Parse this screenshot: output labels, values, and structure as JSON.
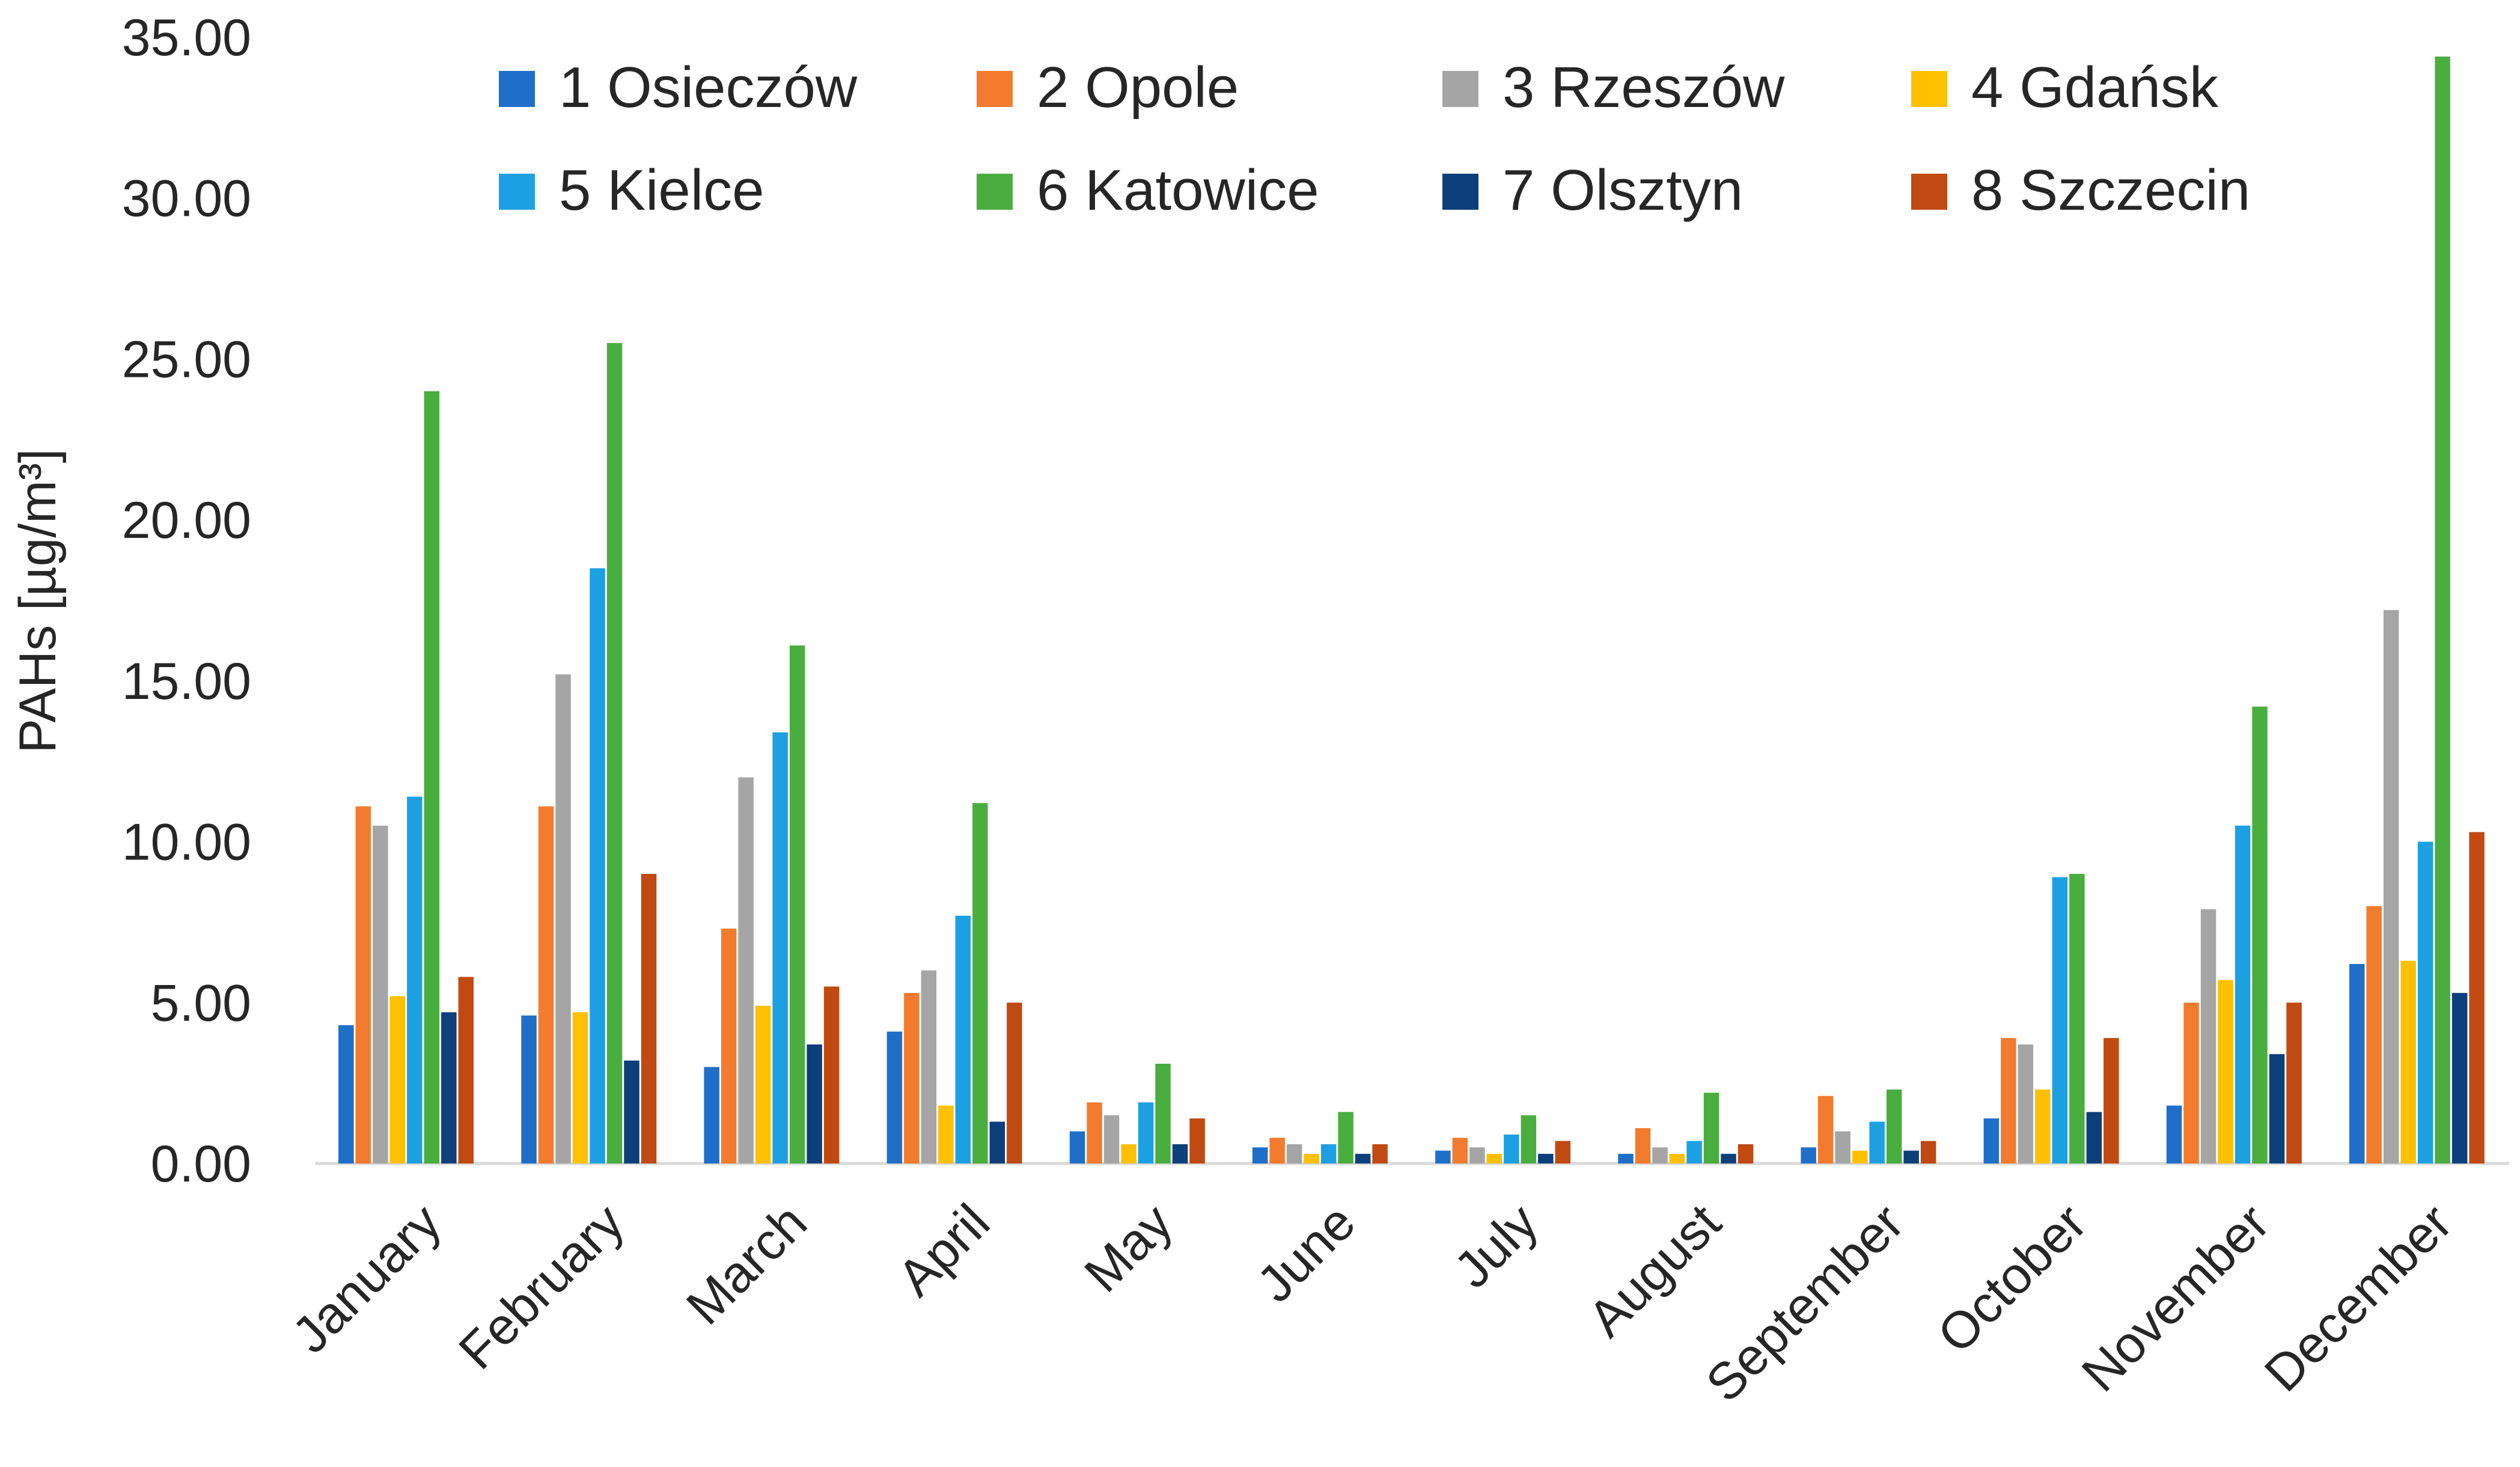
{
  "chart_data": {
    "type": "bar",
    "title": "",
    "xlabel": "",
    "ylabel": "PAHs [µg/m³]",
    "ylim": [
      0,
      35
    ],
    "yticks": [
      "0.00",
      "5.00",
      "10.00",
      "15.00",
      "20.00",
      "25.00",
      "30.00",
      "35.00"
    ],
    "grid": false,
    "legend_position": "top",
    "categories": [
      "January",
      "February",
      "March",
      "April",
      "May",
      "June",
      "July",
      "August",
      "September",
      "October",
      "November",
      "December"
    ],
    "series": [
      {
        "name": "1 Osieczów",
        "color": "#1f6fc9",
        "values": [
          4.3,
          4.6,
          3.0,
          4.1,
          1.0,
          0.5,
          0.4,
          0.3,
          0.5,
          1.4,
          1.8,
          6.2
        ]
      },
      {
        "name": "2 Opole",
        "color": "#f37b2e",
        "values": [
          11.1,
          11.1,
          7.3,
          5.3,
          1.9,
          0.8,
          0.8,
          1.1,
          2.1,
          3.9,
          5.0,
          8.0
        ]
      },
      {
        "name": "3 Rzeszów",
        "color": "#a5a5a5",
        "values": [
          10.5,
          15.2,
          12.0,
          6.0,
          1.5,
          0.6,
          0.5,
          0.5,
          1.0,
          3.7,
          7.9,
          17.2
        ]
      },
      {
        "name": "4 Gdańsk",
        "color": "#ffc000",
        "values": [
          5.2,
          4.7,
          4.9,
          1.8,
          0.6,
          0.3,
          0.3,
          0.3,
          0.4,
          2.3,
          5.7,
          6.3
        ]
      },
      {
        "name": "5 Kielce",
        "color": "#1ca0e2",
        "values": [
          11.4,
          18.5,
          13.4,
          7.7,
          1.9,
          0.6,
          0.9,
          0.7,
          1.3,
          8.9,
          10.5,
          10.0
        ]
      },
      {
        "name": "6 Katowice",
        "color": "#4aae3e",
        "values": [
          24.0,
          25.5,
          16.1,
          11.2,
          3.1,
          1.6,
          1.5,
          2.2,
          2.3,
          9.0,
          14.2,
          34.4
        ]
      },
      {
        "name": "7 Olsztyn",
        "color": "#0d3f7a",
        "values": [
          4.7,
          3.2,
          3.7,
          1.3,
          0.6,
          0.3,
          0.3,
          0.3,
          0.4,
          1.6,
          3.4,
          5.3
        ]
      },
      {
        "name": "8 Szczecin",
        "color": "#c04a12",
        "values": [
          5.8,
          9.0,
          5.5,
          5.0,
          1.4,
          0.6,
          0.7,
          0.6,
          0.7,
          3.9,
          5.0,
          10.3
        ]
      }
    ]
  }
}
